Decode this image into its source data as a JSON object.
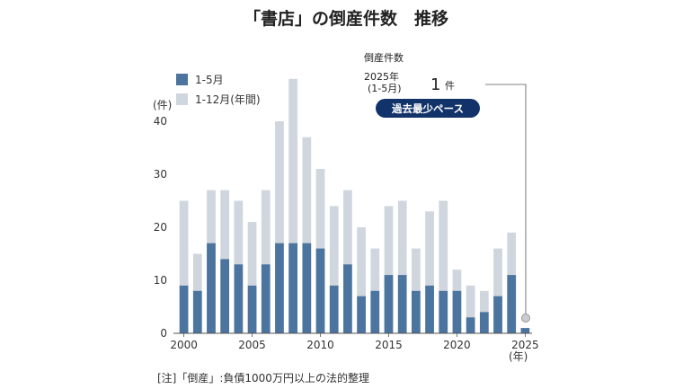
{
  "chart_data": {
    "type": "bar",
    "title": "「書店」の倒産件数　推移",
    "ylabel": "(件)",
    "xlabel": "(年)",
    "ylim": [
      0,
      50
    ],
    "yticks": [
      0,
      10,
      20,
      30,
      40
    ],
    "xticks": [
      "2000",
      "2005",
      "2010",
      "2015",
      "2020",
      "2025"
    ],
    "categories": [
      2000,
      2001,
      2002,
      2003,
      2004,
      2005,
      2006,
      2007,
      2008,
      2009,
      2010,
      2011,
      2012,
      2013,
      2014,
      2015,
      2016,
      2017,
      2018,
      2019,
      2020,
      2021,
      2022,
      2023,
      2024,
      2025
    ],
    "series": [
      {
        "name": "1-12月(年間)",
        "color": "#cfd6dd",
        "values": [
          25,
          15,
          27,
          27,
          25,
          21,
          27,
          40,
          48,
          37,
          31,
          24,
          27,
          20,
          16,
          24,
          25,
          16,
          23,
          25,
          12,
          9,
          8,
          16,
          19,
          null
        ]
      },
      {
        "name": "1-5月",
        "color": "#4b749e",
        "values": [
          9,
          8,
          17,
          14,
          13,
          9,
          13,
          17,
          17,
          17,
          16,
          9,
          13,
          7,
          8,
          11,
          11,
          8,
          9,
          8,
          8,
          3,
          4,
          7,
          11,
          1
        ]
      }
    ],
    "legend": "top-left",
    "grid": false
  },
  "annotation": {
    "header": "倒産件数",
    "year": "2025年",
    "period": "(1-5月)",
    "value": "1",
    "unit": "件",
    "badge": "過去最少ペース"
  },
  "note": "[注]「倒産」:負債1000万円以上の法的整理",
  "colors": {
    "badge": "#12336a",
    "axis": "#555555",
    "marker": "#c9cdd2"
  }
}
